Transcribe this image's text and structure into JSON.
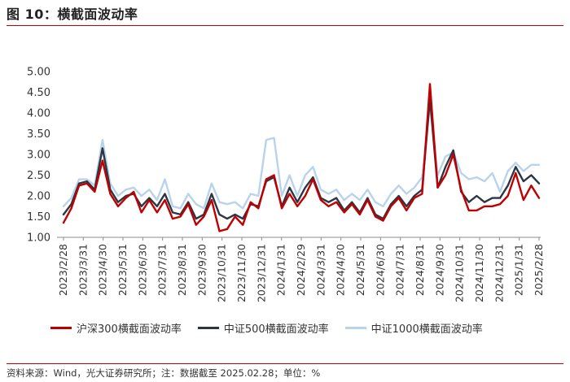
{
  "header": {
    "title": "图 10：横截面波动率"
  },
  "footer": {
    "source": "资料来源：Wind，光大证券研究所；注：数据截至 2025.02.28；单位：%"
  },
  "chart_data": {
    "type": "line",
    "title": "图 10：横截面波动率",
    "xlabel": "",
    "ylabel": "",
    "ylim": [
      1.0,
      5.0
    ],
    "yticks": [
      "1.00",
      "1.50",
      "2.00",
      "2.50",
      "3.00",
      "3.50",
      "4.00",
      "4.50",
      "5.00"
    ],
    "x_ticks": [
      "2023/2/28",
      "2023/3/31",
      "2023/4/30",
      "2023/5/31",
      "2023/6/30",
      "2023/7/31",
      "2023/8/31",
      "2023/9/30",
      "2023/10/31",
      "2023/11/30",
      "2023/12/31",
      "2024/1/31",
      "2024/2/29",
      "2024/3/31",
      "2024/4/30",
      "2024/5/31",
      "2024/6/30",
      "2024/7/31",
      "2024/8/31",
      "2024/9/30",
      "2024/10/31",
      "2024/11/30",
      "2024/12/31",
      "2025/1/31",
      "2025/2/28"
    ],
    "grid": false,
    "legend": "bottom",
    "series": [
      {
        "name": "沪深300横截面波动率",
        "color": "#c00000",
        "values": [
          1.35,
          1.7,
          2.25,
          2.3,
          2.1,
          2.85,
          2.05,
          1.75,
          1.95,
          2.1,
          1.6,
          1.9,
          1.6,
          1.9,
          1.45,
          1.5,
          1.8,
          1.3,
          1.5,
          1.9,
          1.15,
          1.2,
          1.5,
          1.3,
          1.85,
          1.7,
          2.4,
          2.5,
          1.7,
          2.05,
          1.75,
          2.0,
          2.4,
          1.9,
          1.75,
          1.85,
          1.6,
          1.8,
          1.55,
          1.9,
          1.5,
          1.4,
          1.75,
          1.95,
          1.65,
          1.95,
          2.05,
          4.7,
          2.2,
          2.5,
          3.0,
          2.15,
          1.65,
          1.65,
          1.75,
          1.75,
          1.8,
          2.0,
          2.55,
          1.9,
          2.25,
          1.95
        ]
      },
      {
        "name": "中证500横截面波动率",
        "color": "#2b3544",
        "values": [
          1.55,
          1.8,
          2.3,
          2.35,
          2.15,
          3.15,
          2.15,
          1.85,
          2.0,
          2.05,
          1.75,
          1.95,
          1.75,
          2.05,
          1.6,
          1.55,
          1.85,
          1.45,
          1.55,
          2.05,
          1.55,
          1.45,
          1.55,
          1.45,
          1.8,
          1.75,
          2.35,
          2.45,
          1.75,
          2.2,
          1.85,
          2.2,
          2.45,
          1.95,
          1.85,
          1.95,
          1.65,
          1.85,
          1.6,
          1.95,
          1.55,
          1.45,
          1.8,
          2.0,
          1.75,
          2.0,
          2.15,
          4.35,
          2.2,
          2.7,
          3.1,
          2.1,
          1.85,
          2.0,
          1.85,
          1.95,
          1.95,
          2.25,
          2.7,
          2.35,
          2.5,
          2.3
        ]
      },
      {
        "name": "中证1000横截面波动率",
        "color": "#b9d3ea",
        "values": [
          1.75,
          1.95,
          2.4,
          2.4,
          2.25,
          3.35,
          2.3,
          2.0,
          2.15,
          2.2,
          2.0,
          2.15,
          1.9,
          2.4,
          1.75,
          1.7,
          2.05,
          1.8,
          1.7,
          2.3,
          1.85,
          1.8,
          1.85,
          1.7,
          2.05,
          2.0,
          3.35,
          3.4,
          2.0,
          2.5,
          2.0,
          2.5,
          2.7,
          2.15,
          2.05,
          2.15,
          1.9,
          2.05,
          1.9,
          2.15,
          1.85,
          1.75,
          2.05,
          2.25,
          2.05,
          2.2,
          2.45,
          4.2,
          2.5,
          2.95,
          3.05,
          2.55,
          2.4,
          2.45,
          2.35,
          2.55,
          2.1,
          2.6,
          2.8,
          2.6,
          2.75,
          2.75
        ]
      }
    ]
  }
}
